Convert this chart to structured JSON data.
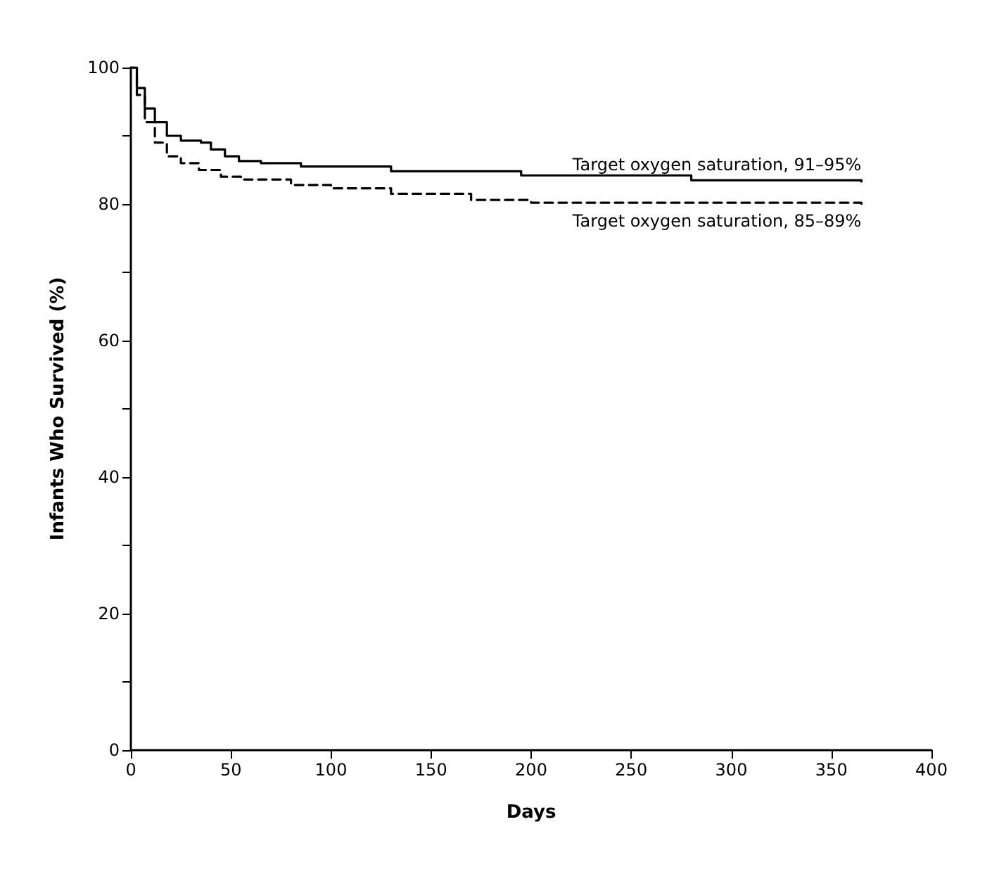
{
  "chart_data": {
    "type": "step",
    "xlabel": "Days",
    "ylabel": "Infants Who Survived (%)",
    "xlim": [
      0,
      400
    ],
    "xticks": [
      0,
      50,
      100,
      150,
      200,
      250,
      300,
      350,
      400
    ],
    "ylim": [
      0,
      100
    ],
    "yticks": [
      0,
      {
        "value": 10,
        "label": null
      },
      20,
      {
        "value": 30,
        "label": null
      },
      40,
      {
        "value": 50,
        "label": null
      },
      60,
      {
        "value": 70,
        "label": null
      },
      80,
      {
        "value": 90,
        "label": null
      },
      100
    ],
    "grid": false,
    "legend": false,
    "marker": "none",
    "series": [
      {
        "name": "Target oxygen saturation, 91–95%",
        "color": "#000000",
        "line_style": "solid",
        "x": [
          0,
          3,
          7,
          12,
          18,
          25,
          35,
          40,
          47,
          54,
          65,
          85,
          130,
          195,
          280,
          365
        ],
        "values": [
          100,
          97,
          94,
          92,
          90,
          89.3,
          89,
          88,
          87,
          86.3,
          86,
          85.5,
          84.8,
          84.2,
          83.5,
          83.3
        ]
      },
      {
        "name": "Target oxygen saturation, 85–89%",
        "color": "#000000",
        "line_style": "dashed",
        "x": [
          0,
          3,
          7,
          12,
          18,
          25,
          34,
          45,
          55,
          80,
          100,
          130,
          170,
          200,
          365
        ],
        "values": [
          100,
          96,
          92,
          89,
          87,
          86,
          85,
          84,
          83.6,
          82.8,
          82.3,
          81.5,
          80.6,
          80.2,
          80
        ]
      }
    ]
  }
}
